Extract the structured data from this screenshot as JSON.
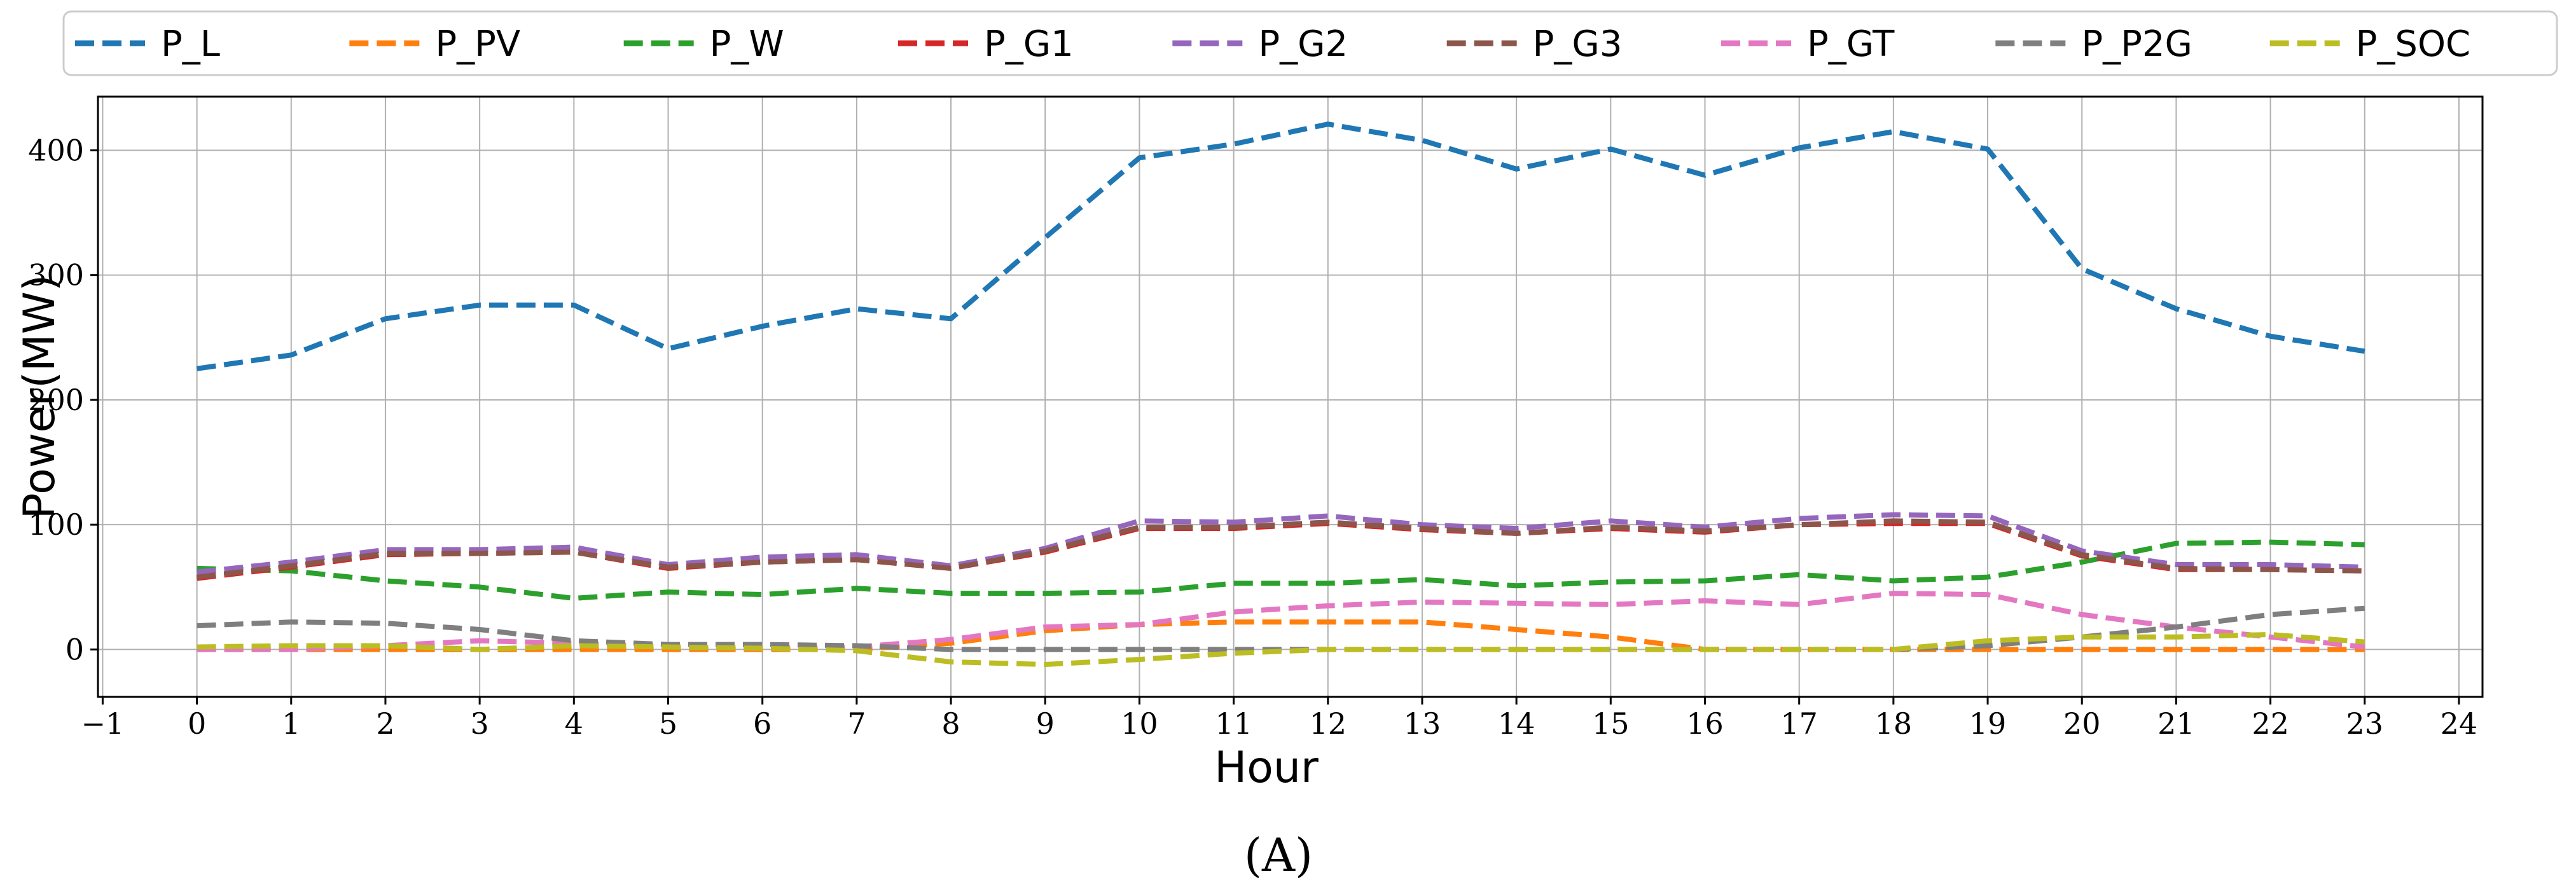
{
  "chart_data": {
    "type": "line",
    "title": "",
    "xlabel": "Hour",
    "ylabel": "Power(MW)",
    "caption": "(A)",
    "xlim": [
      -1.05,
      24.25
    ],
    "ylim": [
      -38,
      443
    ],
    "x_ticks": [
      -1,
      0,
      1,
      2,
      3,
      4,
      5,
      6,
      7,
      8,
      9,
      10,
      11,
      12,
      13,
      14,
      15,
      16,
      17,
      18,
      19,
      20,
      21,
      22,
      23,
      24
    ],
    "x_tick_labels": [
      "−1",
      "0",
      "1",
      "2",
      "3",
      "4",
      "5",
      "6",
      "7",
      "8",
      "9",
      "10",
      "11",
      "12",
      "13",
      "14",
      "15",
      "16",
      "17",
      "18",
      "19",
      "20",
      "21",
      "22",
      "23",
      "24"
    ],
    "y_ticks": [
      0,
      100,
      200,
      300,
      400
    ],
    "y_tick_labels": [
      "0",
      "100",
      "200",
      "300",
      "400"
    ],
    "grid": true,
    "legend_position": "top",
    "line_style": "dashed",
    "x": [
      0,
      1,
      2,
      3,
      4,
      5,
      6,
      7,
      8,
      9,
      10,
      11,
      12,
      13,
      14,
      15,
      16,
      17,
      18,
      19,
      20,
      21,
      22,
      23
    ],
    "series": [
      {
        "name": "P_L",
        "color": "#1f77b4",
        "values": [
          225,
          236,
          265,
          276,
          276,
          241,
          259,
          273,
          265,
          330,
          394,
          405,
          421,
          408,
          385,
          401,
          380,
          402,
          415,
          401,
          305,
          273,
          251,
          239
        ]
      },
      {
        "name": "P_PV",
        "color": "#ff7f0e",
        "values": [
          0,
          0,
          0,
          0,
          0,
          0,
          0,
          0,
          5,
          15,
          20,
          22,
          22,
          22,
          16,
          10,
          0,
          0,
          0,
          0,
          0,
          0,
          0,
          0
        ]
      },
      {
        "name": "P_W",
        "color": "#2ca02c",
        "values": [
          65,
          63,
          55,
          50,
          41,
          46,
          44,
          49,
          45,
          45,
          46,
          53,
          53,
          56,
          51,
          54,
          55,
          60,
          55,
          58,
          70,
          85,
          86,
          84
        ]
      },
      {
        "name": "P_G1",
        "color": "#d62728",
        "values": [
          57,
          66,
          76,
          77,
          78,
          65,
          70,
          72,
          65,
          78,
          97,
          97,
          101,
          96,
          93,
          97,
          94,
          100,
          101,
          101,
          75,
          64,
          64,
          63
        ]
      },
      {
        "name": "P_G2",
        "color": "#9467bd",
        "values": [
          62,
          70,
          80,
          80,
          82,
          68,
          74,
          76,
          67,
          81,
          103,
          102,
          107,
          100,
          97,
          103,
          98,
          105,
          108,
          107,
          79,
          68,
          68,
          66
        ]
      },
      {
        "name": "P_G3",
        "color": "#8c564b",
        "values": [
          58,
          67,
          77,
          77,
          78,
          66,
          70,
          72,
          65,
          79,
          98,
          98,
          102,
          97,
          93,
          98,
          95,
          100,
          103,
          102,
          76,
          65,
          64,
          63
        ]
      },
      {
        "name": "P_GT",
        "color": "#e377c2",
        "values": [
          0,
          0,
          3,
          7,
          5,
          2,
          1,
          2,
          8,
          18,
          20,
          30,
          35,
          38,
          37,
          36,
          39,
          36,
          45,
          44,
          28,
          18,
          10,
          2
        ]
      },
      {
        "name": "P_P2G",
        "color": "#7f7f7f",
        "values": [
          19,
          22,
          21,
          16,
          7,
          4,
          4,
          3,
          0,
          0,
          0,
          0,
          0,
          0,
          0,
          0,
          0,
          0,
          0,
          3,
          10,
          18,
          28,
          33
        ]
      },
      {
        "name": "P_SOC",
        "color": "#bcbd22",
        "values": [
          2,
          3,
          3,
          0,
          3,
          2,
          1,
          -1,
          -10,
          -12,
          -8,
          -3,
          0,
          0,
          0,
          0,
          0,
          0,
          0,
          7,
          10,
          10,
          12,
          6
        ]
      }
    ]
  }
}
